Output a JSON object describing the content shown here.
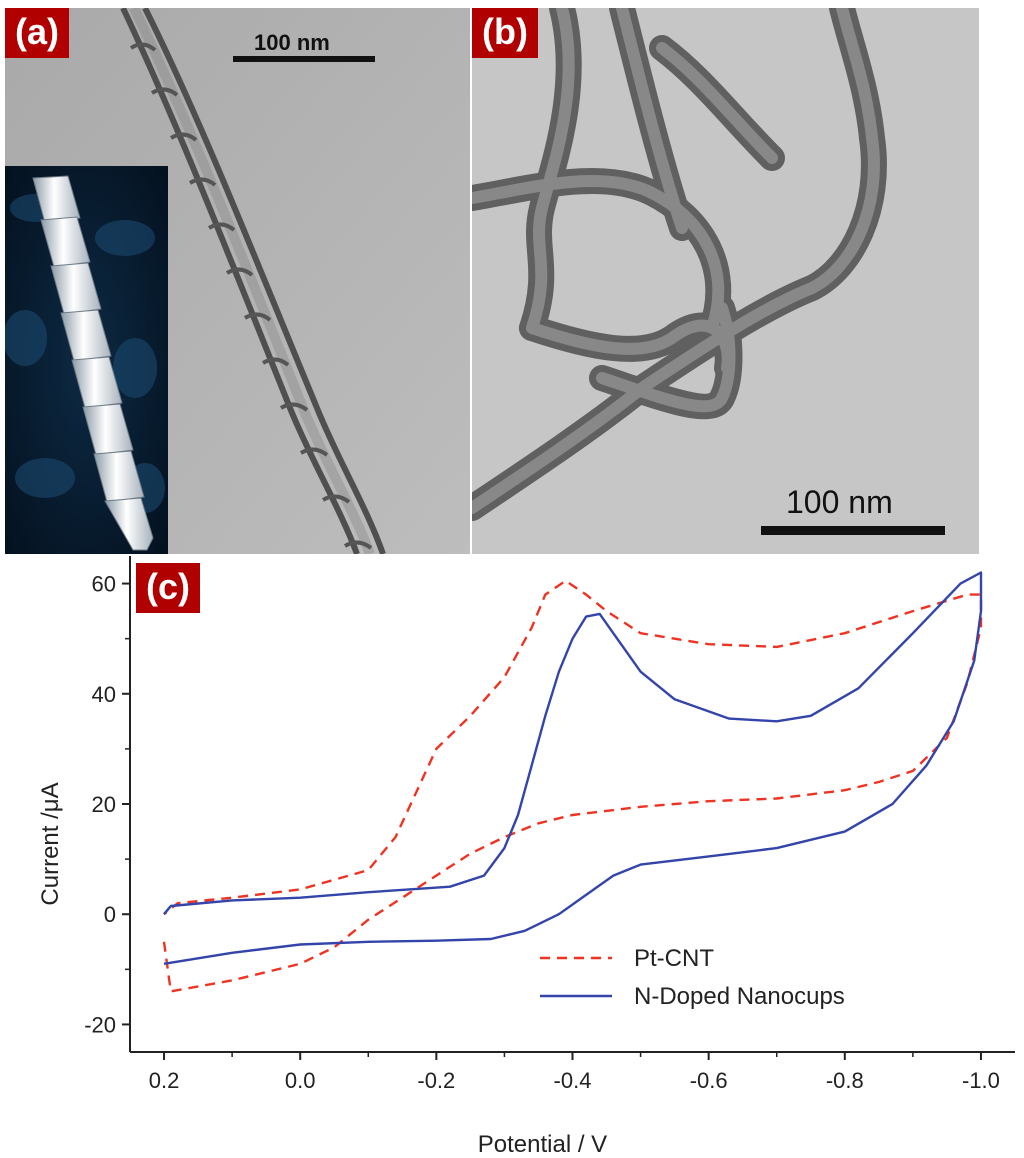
{
  "panels": {
    "a": {
      "label": "(a)",
      "scale_bar": "100 nm"
    },
    "b": {
      "label": "(b)",
      "scale_bar": "100 nm"
    },
    "c": {
      "label": "(c)"
    }
  },
  "colors": {
    "tag_bg": "#b00000",
    "pt_cnt": "#ee3322",
    "n_doped": "#3344aa"
  },
  "chart_data": {
    "type": "line",
    "xlabel": "Potential / V",
    "ylabel": "Current /μA",
    "xlim": [
      0.25,
      -1.05
    ],
    "ylim": [
      -25,
      65
    ],
    "x_ticks": [
      0.2,
      0.0,
      -0.2,
      -0.4,
      -0.6,
      -0.8,
      -1.0
    ],
    "x_tick_labels": [
      "0.2",
      "0.0",
      "-0.2",
      "-0.4",
      "-0.6",
      "-0.8",
      "-1.0"
    ],
    "y_ticks": [
      -20,
      0,
      20,
      40,
      60
    ],
    "y_tick_labels": [
      "-20",
      "0",
      "20",
      "40",
      "60"
    ],
    "legend_position": "bottom-right",
    "series": [
      {
        "name": "Pt-CNT",
        "style": "dashed",
        "points": [
          [
            0.2,
            -5
          ],
          [
            0.19,
            -14
          ],
          [
            0.1,
            -12
          ],
          [
            0.0,
            -9
          ],
          [
            -0.05,
            -6
          ],
          [
            -0.1,
            -1
          ],
          [
            -0.15,
            3
          ],
          [
            -0.2,
            7
          ],
          [
            -0.25,
            11
          ],
          [
            -0.3,
            14
          ],
          [
            -0.35,
            16.5
          ],
          [
            -0.4,
            18
          ],
          [
            -0.5,
            19.5
          ],
          [
            -0.6,
            20.5
          ],
          [
            -0.7,
            21
          ],
          [
            -0.8,
            22.5
          ],
          [
            -0.85,
            24
          ],
          [
            -0.9,
            26
          ],
          [
            -0.95,
            32
          ],
          [
            -0.98,
            42
          ],
          [
            -1.0,
            52
          ],
          [
            -1.0,
            58
          ],
          [
            -0.98,
            58
          ],
          [
            -0.9,
            55
          ],
          [
            -0.8,
            51
          ],
          [
            -0.7,
            48.5
          ],
          [
            -0.6,
            49
          ],
          [
            -0.5,
            51
          ],
          [
            -0.45,
            55
          ],
          [
            -0.42,
            58
          ],
          [
            -0.39,
            60.5
          ],
          [
            -0.36,
            58
          ],
          [
            -0.34,
            52
          ],
          [
            -0.3,
            43
          ],
          [
            -0.25,
            36
          ],
          [
            -0.2,
            30
          ],
          [
            -0.17,
            22
          ],
          [
            -0.14,
            14
          ],
          [
            -0.1,
            8
          ],
          [
            0.0,
            4.5
          ],
          [
            0.1,
            3
          ],
          [
            0.18,
            2
          ],
          [
            0.2,
            0
          ]
        ]
      },
      {
        "name": "N-Doped Nanocups",
        "style": "solid",
        "points": [
          [
            0.2,
            -9
          ],
          [
            0.1,
            -7
          ],
          [
            0.0,
            -5.5
          ],
          [
            -0.1,
            -5
          ],
          [
            -0.2,
            -4.8
          ],
          [
            -0.28,
            -4.5
          ],
          [
            -0.33,
            -3
          ],
          [
            -0.38,
            0
          ],
          [
            -0.42,
            3.5
          ],
          [
            -0.46,
            7
          ],
          [
            -0.5,
            9
          ],
          [
            -0.6,
            10.5
          ],
          [
            -0.7,
            12
          ],
          [
            -0.8,
            15
          ],
          [
            -0.87,
            20
          ],
          [
            -0.92,
            27
          ],
          [
            -0.96,
            35
          ],
          [
            -0.99,
            46
          ],
          [
            -1.0,
            55
          ],
          [
            -1.0,
            62
          ],
          [
            -0.97,
            60
          ],
          [
            -0.9,
            51
          ],
          [
            -0.82,
            41
          ],
          [
            -0.75,
            36
          ],
          [
            -0.7,
            35
          ],
          [
            -0.63,
            35.5
          ],
          [
            -0.55,
            39
          ],
          [
            -0.5,
            44
          ],
          [
            -0.46,
            51
          ],
          [
            -0.44,
            54.5
          ],
          [
            -0.42,
            54
          ],
          [
            -0.4,
            50
          ],
          [
            -0.38,
            44
          ],
          [
            -0.36,
            36
          ],
          [
            -0.34,
            27
          ],
          [
            -0.32,
            18
          ],
          [
            -0.3,
            12
          ],
          [
            -0.27,
            7
          ],
          [
            -0.22,
            5
          ],
          [
            -0.1,
            4
          ],
          [
            0.0,
            3
          ],
          [
            0.1,
            2.5
          ],
          [
            0.19,
            1.5
          ],
          [
            0.2,
            0
          ]
        ]
      }
    ]
  }
}
